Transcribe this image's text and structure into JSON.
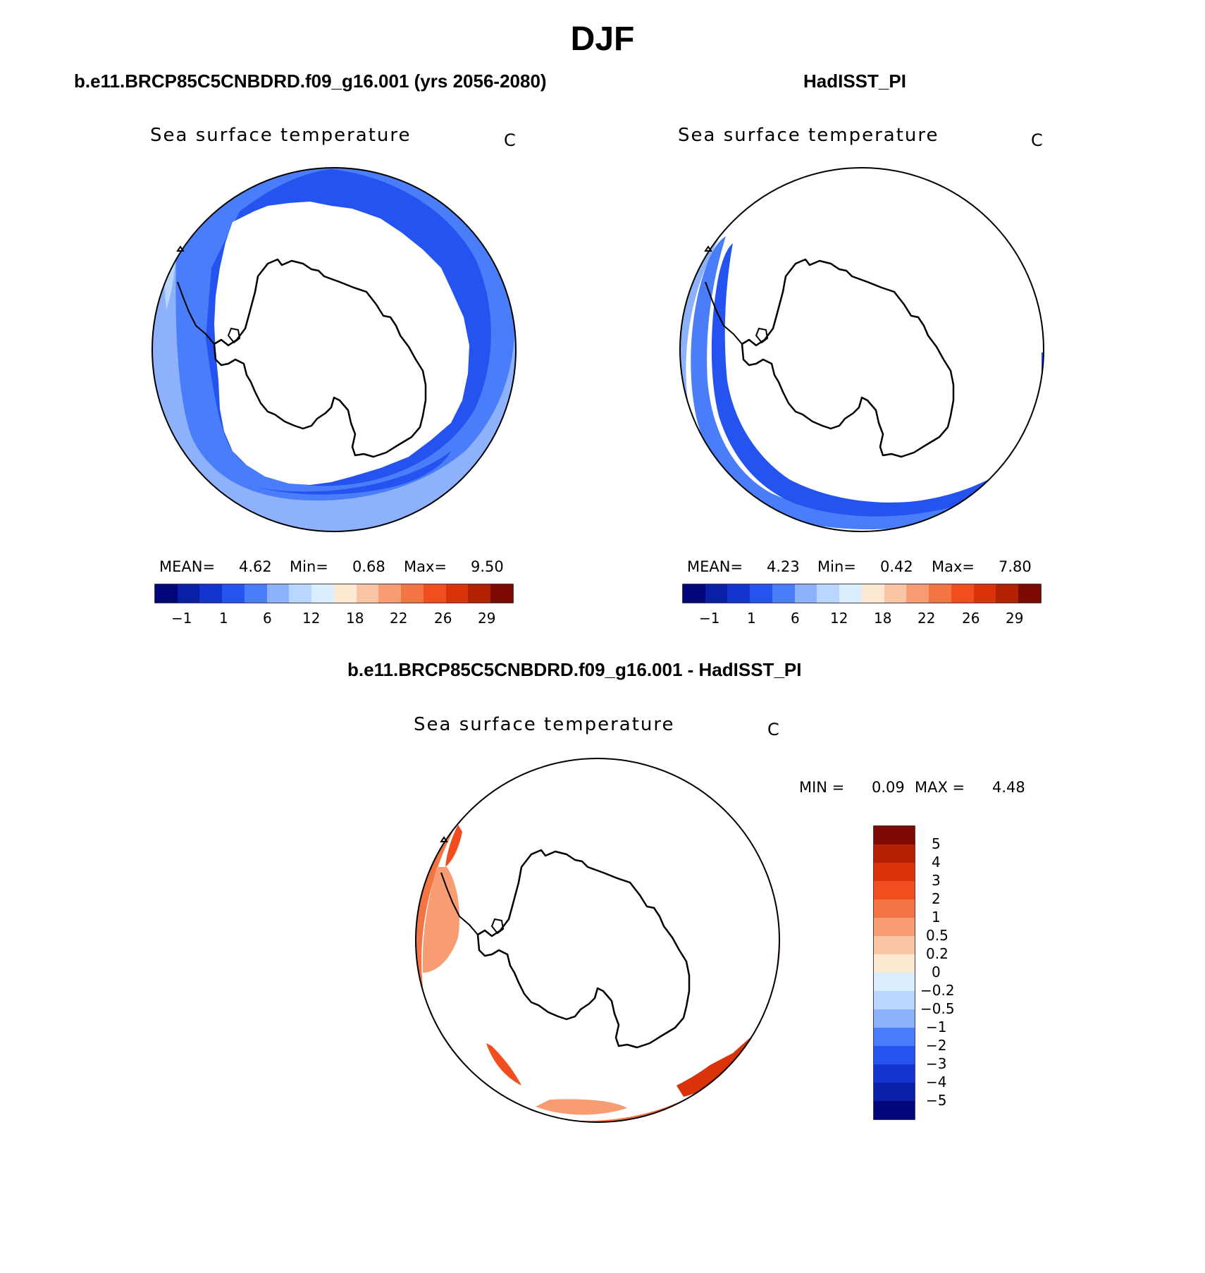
{
  "title": "DJF",
  "colors": {
    "lightest_blue": "#dbeeff",
    "light_blue": "#b8d6ff",
    "medium_light_blue": "#8db2fb",
    "medium_blue": "#4a7dfa",
    "blue": "#2453ef",
    "dark_blue": "#1334cf",
    "deeper_blue": "#0a1fa8",
    "navy": "#01077b",
    "lightest_orange": "#fde8d2",
    "light_orange": "#fac5a5",
    "medium_orange": "#f79c73",
    "orange": "#f57443",
    "red_orange": "#f14d1f",
    "red": "#db3309",
    "dark_red": "#b42002",
    "maroon": "#7d0a02"
  },
  "panels": [
    {
      "title": "b.e11.BRCP85C5CNBDRD.f09_g16.001 (yrs 2056-2080)",
      "variable": "Sea surface temperature",
      "units": "C",
      "stats": {
        "mean_label": "MEAN=",
        "mean": "4.62",
        "min_label": "Min=",
        "min": "0.68",
        "max_label": "Max=",
        "max": "9.50"
      },
      "colorbar_labels": [
        "−1",
        "1",
        "6",
        "12",
        "18",
        "22",
        "26",
        "29"
      ]
    },
    {
      "title": "HadISST_PI",
      "variable": "Sea surface temperature",
      "units": "C",
      "stats": {
        "mean_label": "MEAN=",
        "mean": "4.23",
        "min_label": "Min=",
        "min": "0.42",
        "max_label": "Max=",
        "max": "7.80"
      },
      "colorbar_labels": [
        "−1",
        "1",
        "6",
        "12",
        "18",
        "22",
        "26",
        "29"
      ]
    }
  ],
  "diff_panel": {
    "title": "b.e11.BRCP85C5CNBDRD.f09_g16.001 - HadISST_PI",
    "variable": "Sea surface temperature",
    "units": "C",
    "stats": {
      "min_label": "MIN =",
      "min": "0.09",
      "max_label": "MAX =",
      "max": "4.48"
    },
    "colorbar_labels": [
      "5",
      "4",
      "3",
      "2",
      "1",
      "0.5",
      "0.2",
      "0",
      "−0.2",
      "−0.5",
      "−1",
      "−2",
      "−3",
      "−4",
      "−5"
    ]
  }
}
